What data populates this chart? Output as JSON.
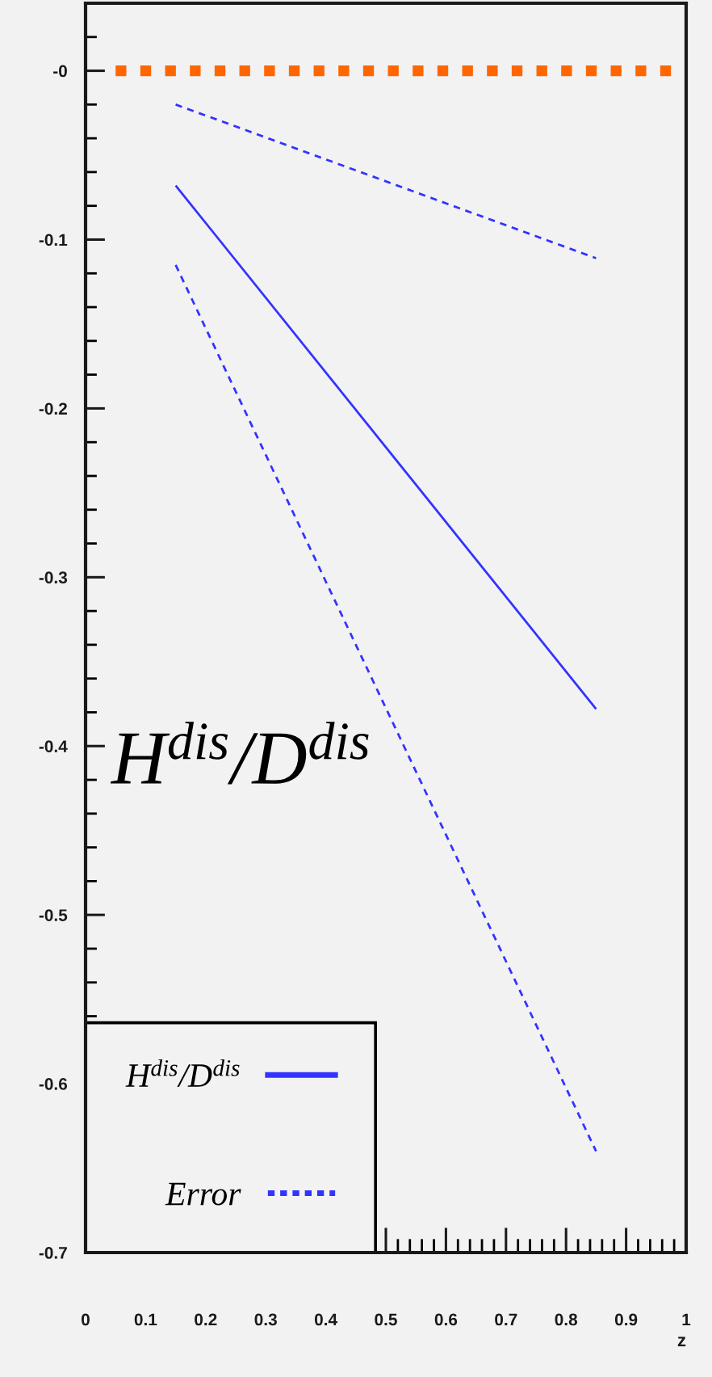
{
  "chart_data": {
    "type": "line",
    "xlabel": "z",
    "xlim": [
      0,
      1
    ],
    "ylim": [
      -0.7,
      0.04
    ],
    "xticks": [
      0,
      0.1,
      0.2,
      0.3,
      0.4,
      0.5,
      0.6,
      0.7,
      0.8,
      0.9,
      1
    ],
    "yticks": [
      -0.7,
      -0.6,
      -0.5,
      -0.4,
      -0.3,
      -0.2,
      -0.1,
      {
        "value": 0,
        "label": "-0"
      }
    ],
    "legend": "bottom left",
    "annotations": [
      "H$^{dis}$/D$^{dis}$"
    ],
    "series": [
      {
        "color": "#ff6600",
        "line_style": "dotted",
        "x": [
          0.05,
          0.98
        ],
        "values": [
          0,
          0
        ]
      },
      {
        "name": "H$^{dis}$/D$^{dis}$",
        "color": "#3333ff",
        "line_style": "solid",
        "x": [
          0.15,
          0.85
        ],
        "values": [
          -0.068,
          -0.378
        ]
      },
      {
        "name": "Error",
        "color": "#3333ff",
        "line_style": "dashed",
        "x": [
          0.15,
          0.85
        ],
        "values": [
          -0.02,
          -0.111
        ]
      },
      {
        "color": "#3333ff",
        "line_style": "dashed",
        "x": [
          0.15,
          0.85
        ],
        "values": [
          -0.115,
          -0.64
        ]
      }
    ]
  }
}
